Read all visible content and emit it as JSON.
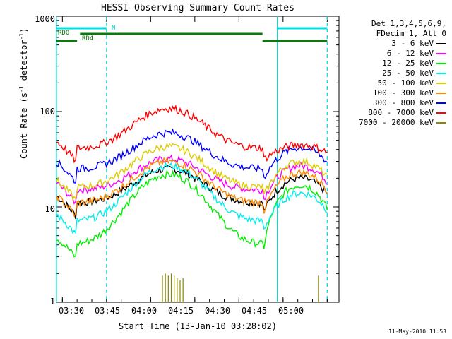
{
  "chart_data": {
    "type": "line",
    "title": "HESSI Observing Summary Count Rates",
    "xlabel": "Start Time (13-Jan-10 03:28:02)",
    "ylabel_main": "Count Rate (s",
    "ylabel_sup1": "-1",
    "ylabel_mid": " detector",
    "ylabel_sup2": "-1",
    "ylabel_end": ")",
    "yscale": "log",
    "ylim": [
      1,
      1000
    ],
    "yticks": [
      "1",
      "10",
      "100",
      "1000"
    ],
    "xlim_minutes": [
      0,
      96
    ],
    "xticks": [
      {
        "label": "03:30",
        "minute": 2
      },
      {
        "label": "03:45",
        "minute": 17
      },
      {
        "label": "04:00",
        "minute": 32
      },
      {
        "label": "04:15",
        "minute": 47
      },
      {
        "label": "04:30",
        "minute": 62
      },
      {
        "label": "04:45",
        "minute": 77
      },
      {
        "label": "05:00",
        "minute": 92
      }
    ],
    "legend_header": [
      "Det 1,3,4,5,6,9,",
      "FDecim 1, Att 0"
    ],
    "legend_placement": "right",
    "series": [
      {
        "name": "3 - 6 keV",
        "color": "#000000",
        "peak": 25,
        "low": 11,
        "end": 20
      },
      {
        "name": "6 - 12 keV",
        "color": "#ff00ff",
        "peak": 32,
        "low": 15,
        "end": 27
      },
      {
        "name": "12 - 25 keV",
        "color": "#00ee00",
        "peak": 22,
        "low": 4,
        "end": 17
      },
      {
        "name": "25 - 50 keV",
        "color": "#00eeee",
        "peak": 27,
        "low": 7,
        "end": 14
      },
      {
        "name": "50 - 100 keV",
        "color": "#ddcc00",
        "peak": 43,
        "low": 16,
        "end": 30
      },
      {
        "name": "100 - 300 keV",
        "color": "#ff8800",
        "peak": 30,
        "low": 11,
        "end": 23
      },
      {
        "name": "300 - 800 keV",
        "color": "#0000ff",
        "peak": 60,
        "low": 25,
        "end": 42
      },
      {
        "name": "800 - 7000 keV",
        "color": "#ff0000",
        "peak": 108,
        "low": 41,
        "end": 45
      },
      {
        "name": "7000 - 20000 keV",
        "color": "#888800",
        "peak": 2,
        "low": 1,
        "end": 1
      }
    ],
    "state_bars": [
      {
        "label": "N",
        "color": "#00dddd",
        "segments": [
          [
            0,
            17
          ],
          [
            75,
            92
          ]
        ]
      },
      {
        "label": "RD0",
        "color": "#0a7a0a",
        "segments": [
          [
            8,
            70
          ]
        ]
      },
      {
        "label": "RD4",
        "color": "#0a7a0a",
        "segments": [
          [
            0,
            7
          ],
          [
            70,
            92
          ]
        ]
      }
    ],
    "vertical_markers": [
      {
        "minute": 0,
        "style": "solid"
      },
      {
        "minute": 17,
        "style": "dashed"
      },
      {
        "minute": 75,
        "style": "solid"
      },
      {
        "minute": 92,
        "style": "dashed"
      }
    ]
  },
  "footer": "11-May-2010 11:53"
}
